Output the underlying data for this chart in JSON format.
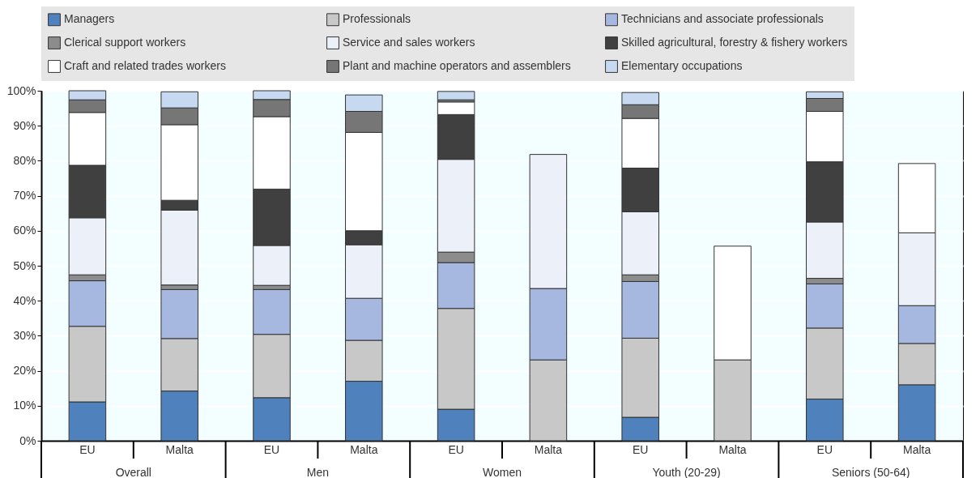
{
  "chart_data": {
    "type": "bar",
    "stacked": true,
    "categories": [
      "EU",
      "Malta",
      "EU",
      "Malta",
      "EU",
      "Malta",
      "EU",
      "Malta",
      "EU",
      "Malta"
    ],
    "annotations": [
      "Overall",
      "Men",
      "Women",
      "Youth (20-29)",
      "Seniors (50-64)"
    ],
    "series": [
      {
        "name": "Managers",
        "color": "#4f81bd",
        "values": [
          11.1,
          14.2,
          12.3,
          17.0,
          9.0,
          null,
          6.7,
          null,
          11.9,
          16.0
        ]
      },
      {
        "name": "Professionals",
        "color": "#c8c8c8",
        "values": [
          21.6,
          15.0,
          18.1,
          11.7,
          28.8,
          23.1,
          22.6,
          23.1,
          20.3,
          11.8
        ]
      },
      {
        "name": "Technicians and associate professionals",
        "color": "#a7b8e0",
        "values": [
          13.0,
          14.0,
          12.8,
          12.0,
          13.1,
          20.4,
          16.2,
          null,
          12.6,
          10.8
        ]
      },
      {
        "name": "Clerical support workers",
        "color": "#8c8c8c",
        "values": [
          1.7,
          1.3,
          1.2,
          null,
          3.0,
          null,
          1.9,
          null,
          1.6,
          null
        ]
      },
      {
        "name": "Service and sales workers",
        "color": "#ecf0f8",
        "values": [
          16.3,
          21.4,
          11.4,
          15.3,
          26.5,
          38.3,
          18.0,
          null,
          16.1,
          20.8
        ]
      },
      {
        "name": "Skilled agricultural, forestry & fishery workers",
        "color": "#404040",
        "values": [
          15.0,
          2.8,
          16.1,
          4.0,
          12.8,
          null,
          12.5,
          null,
          17.2,
          null
        ]
      },
      {
        "name": "Craft and related trades workers",
        "color": "#ffffff",
        "values": [
          15.1,
          21.6,
          20.7,
          28.1,
          3.6,
          null,
          14.2,
          32.5,
          14.4,
          19.8
        ]
      },
      {
        "name": "Plant and machine operators and assemblers",
        "color": "#767676",
        "values": [
          3.6,
          4.8,
          4.9,
          6.0,
          0.6,
          null,
          3.9,
          null,
          3.7,
          null
        ]
      },
      {
        "name": "Elementary occupations",
        "color": "#c6d9f1",
        "values": [
          2.6,
          4.6,
          2.5,
          4.7,
          2.4,
          null,
          3.5,
          null,
          1.9,
          null
        ]
      }
    ],
    "ylim": [
      0,
      100
    ],
    "yticks": [
      {
        "value": 0,
        "label": "0%"
      },
      {
        "value": 10,
        "label": "10%"
      },
      {
        "value": 20,
        "label": "20%"
      },
      {
        "value": 30,
        "label": "30%"
      },
      {
        "value": 40,
        "label": "40%"
      },
      {
        "value": 50,
        "label": "50%"
      },
      {
        "value": 60,
        "label": "60%"
      },
      {
        "value": 70,
        "label": "70%"
      },
      {
        "value": 80,
        "label": "80%"
      },
      {
        "value": 90,
        "label": "90%"
      },
      {
        "value": 100,
        "label": "100%"
      }
    ],
    "grid": true,
    "legend": "top"
  }
}
